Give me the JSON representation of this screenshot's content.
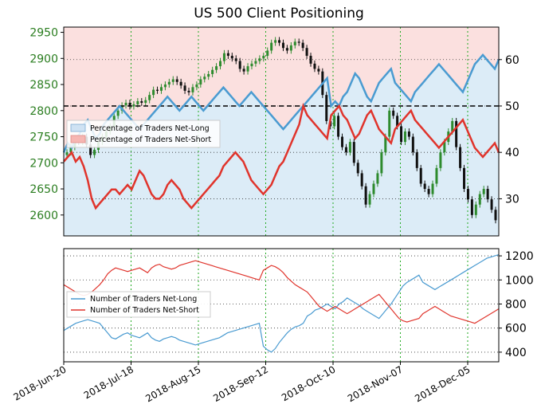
{
  "title": "US 500 Client Positioning",
  "colors": {
    "long": "#4a9bd1",
    "short": "#e0342c",
    "price_tick": "#2a7d1f",
    "up_candle": "#2e8b2e",
    "down_candle": "#111111",
    "grid": "#22aa22",
    "long_fill": "#dcecf7",
    "short_fill": "#fbe0df"
  },
  "x_ticks": [
    "2018-Jun-20",
    "2018-Jul-18",
    "2018-Aug-15",
    "2018-Sep-12",
    "2018-Oct-10",
    "2018-Nov-07",
    "2018-Dec-05"
  ],
  "chart_data": [
    {
      "type": "line",
      "panel": "top",
      "left_axis_ticks": [
        "2950",
        "2900",
        "2850",
        "2800",
        "2750",
        "2700",
        "2650",
        "2600"
      ],
      "right_axis_ticks": [
        "60",
        "50",
        "40",
        "30"
      ],
      "left_ylim": [
        2560,
        2960
      ],
      "right_ylim": [
        22,
        67
      ],
      "reference_line": 50,
      "legend": {
        "placement": "middle-left",
        "entries": [
          "Percentage of Traders Net-Long",
          "Percentage of Traders Net-Short"
        ]
      },
      "price_candles_close": [
        2720,
        2730,
        2745,
        2740,
        2750,
        2735,
        2715,
        2725,
        2740,
        2750,
        2760,
        2770,
        2790,
        2800,
        2810,
        2815,
        2808,
        2812,
        2818,
        2815,
        2820,
        2830,
        2840,
        2838,
        2845,
        2850,
        2855,
        2860,
        2855,
        2848,
        2838,
        2835,
        2845,
        2850,
        2860,
        2865,
        2870,
        2878,
        2885,
        2895,
        2910,
        2905,
        2900,
        2895,
        2880,
        2875,
        2885,
        2890,
        2895,
        2900,
        2905,
        2915,
        2930,
        2935,
        2930,
        2920,
        2915,
        2925,
        2932,
        2930,
        2920,
        2905,
        2890,
        2880,
        2875,
        2830,
        2780,
        2770,
        2790,
        2750,
        2730,
        2720,
        2740,
        2700,
        2680,
        2655,
        2620,
        2640,
        2660,
        2680,
        2720,
        2750,
        2800,
        2790,
        2770,
        2740,
        2760,
        2750,
        2720,
        2690,
        2660,
        2650,
        2640,
        2660,
        2690,
        2720,
        2740,
        2760,
        2780,
        2730,
        2690,
        2650,
        2630,
        2600,
        2620,
        2640,
        2650,
        2630,
        2610,
        2590
      ],
      "series": [
        {
          "name": "Percentage of Traders Net-Long",
          "values": [
            40,
            42,
            41,
            43,
            44,
            46,
            47,
            45,
            43,
            44,
            46,
            47,
            48,
            49,
            50,
            49,
            48,
            47,
            46,
            45,
            46,
            47,
            48,
            49,
            50,
            51,
            52,
            51,
            50,
            49,
            50,
            51,
            52,
            51,
            50,
            49,
            50,
            51,
            52,
            53,
            54,
            53,
            52,
            51,
            50,
            51,
            52,
            53,
            52,
            51,
            50,
            49,
            48,
            47,
            46,
            45,
            46,
            47,
            48,
            49,
            50,
            51,
            52,
            53,
            54,
            55,
            56,
            50,
            51,
            50,
            52,
            53,
            55,
            57,
            56,
            54,
            52,
            51,
            53,
            55,
            56,
            57,
            58,
            55,
            54,
            53,
            52,
            51,
            53,
            54,
            55,
            56,
            57,
            58,
            59,
            58,
            57,
            56,
            55,
            54,
            53,
            55,
            57,
            59,
            60,
            61,
            60,
            59,
            58,
            60
          ]
        },
        {
          "name": "Percentage of Traders Net-Short",
          "values": [
            38,
            39,
            40,
            38,
            39,
            37,
            34,
            30,
            28,
            29,
            30,
            31,
            32,
            32,
            31,
            32,
            33,
            32,
            34,
            36,
            35,
            33,
            31,
            30,
            30,
            31,
            33,
            34,
            33,
            32,
            30,
            29,
            28,
            29,
            30,
            31,
            32,
            33,
            34,
            35,
            37,
            38,
            39,
            40,
            39,
            38,
            36,
            34,
            33,
            32,
            31,
            32,
            33,
            35,
            37,
            38,
            40,
            42,
            44,
            46,
            50,
            48,
            47,
            46,
            45,
            44,
            43,
            48,
            49,
            50,
            48,
            47,
            45,
            43,
            44,
            46,
            48,
            49,
            47,
            45,
            44,
            43,
            42,
            45,
            46,
            47,
            48,
            49,
            47,
            46,
            45,
            44,
            43,
            42,
            41,
            42,
            43,
            44,
            45,
            46,
            47,
            45,
            43,
            41,
            40,
            39,
            40,
            41,
            42,
            40
          ]
        }
      ]
    },
    {
      "type": "line",
      "panel": "bottom",
      "right_axis_ticks": [
        "1200",
        "1000",
        "800",
        "600",
        "400"
      ],
      "ylim": [
        320,
        1260
      ],
      "legend": {
        "placement": "middle-left",
        "entries": [
          "Number of Traders Net-Long",
          "Number of Traders Net-Short"
        ]
      },
      "series": [
        {
          "name": "Number of Traders Net-Long",
          "values": [
            580,
            600,
            620,
            640,
            650,
            660,
            670,
            660,
            650,
            640,
            600,
            560,
            520,
            510,
            530,
            550,
            560,
            540,
            530,
            520,
            540,
            560,
            520,
            500,
            490,
            510,
            520,
            530,
            520,
            500,
            490,
            480,
            470,
            460,
            470,
            480,
            490,
            500,
            510,
            520,
            540,
            560,
            570,
            580,
            590,
            600,
            610,
            620,
            630,
            640,
            450,
            420,
            400,
            430,
            480,
            520,
            560,
            590,
            610,
            620,
            640,
            700,
            720,
            750,
            760,
            780,
            800,
            780,
            760,
            800,
            820,
            850,
            830,
            810,
            790,
            760,
            740,
            720,
            700,
            680,
            720,
            760,
            800,
            850,
            900,
            950,
            980,
            1000,
            1020,
            1040,
            980,
            960,
            940,
            920,
            940,
            960,
            980,
            1000,
            1020,
            1040,
            1060,
            1080,
            1100,
            1120,
            1140,
            1160,
            1180,
            1190,
            1200,
            1210
          ]
        },
        {
          "name": "Number of Traders Net-Short",
          "values": [
            960,
            940,
            920,
            900,
            880,
            870,
            880,
            900,
            930,
            960,
            1000,
            1050,
            1080,
            1100,
            1090,
            1080,
            1070,
            1080,
            1090,
            1100,
            1080,
            1060,
            1100,
            1120,
            1130,
            1110,
            1100,
            1090,
            1100,
            1120,
            1130,
            1140,
            1150,
            1160,
            1150,
            1140,
            1130,
            1120,
            1110,
            1100,
            1090,
            1080,
            1070,
            1060,
            1050,
            1040,
            1030,
            1020,
            1010,
            1000,
            1080,
            1100,
            1120,
            1110,
            1090,
            1060,
            1020,
            990,
            960,
            940,
            920,
            900,
            860,
            820,
            780,
            760,
            740,
            760,
            780,
            760,
            740,
            720,
            740,
            760,
            780,
            800,
            820,
            840,
            860,
            880,
            840,
            800,
            760,
            720,
            680,
            660,
            650,
            660,
            670,
            680,
            720,
            740,
            760,
            780,
            760,
            740,
            720,
            700,
            690,
            680,
            670,
            660,
            650,
            640,
            660,
            680,
            700,
            720,
            740,
            760
          ]
        }
      ]
    }
  ]
}
